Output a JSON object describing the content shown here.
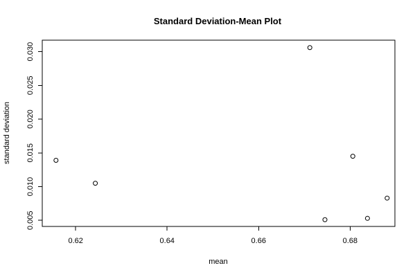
{
  "chart_data": {
    "type": "scatter",
    "title": "Standard Deviation-Mean Plot",
    "xlabel": "mean",
    "ylabel": "standard deviation",
    "xlim": [
      0.6127,
      0.6898
    ],
    "ylim": [
      0.0041,
      0.0317
    ],
    "xticks": [
      0.62,
      0.64,
      0.66,
      0.68
    ],
    "xtick_labels": [
      "0.62",
      "0.64",
      "0.66",
      "0.68"
    ],
    "yticks": [
      0.005,
      0.01,
      0.015,
      0.02,
      0.025,
      0.03
    ],
    "ytick_labels": [
      "0.005",
      "0.010",
      "0.015",
      "0.020",
      "0.025",
      "0.030"
    ],
    "grid": false,
    "marker": "open-circle",
    "points": [
      {
        "x": 0.6157,
        "y": 0.0139
      },
      {
        "x": 0.6243,
        "y": 0.0105
      },
      {
        "x": 0.6712,
        "y": 0.0306
      },
      {
        "x": 0.6745,
        "y": 0.0051
      },
      {
        "x": 0.6806,
        "y": 0.0145
      },
      {
        "x": 0.6838,
        "y": 0.0053
      },
      {
        "x": 0.6881,
        "y": 0.0083
      }
    ]
  }
}
